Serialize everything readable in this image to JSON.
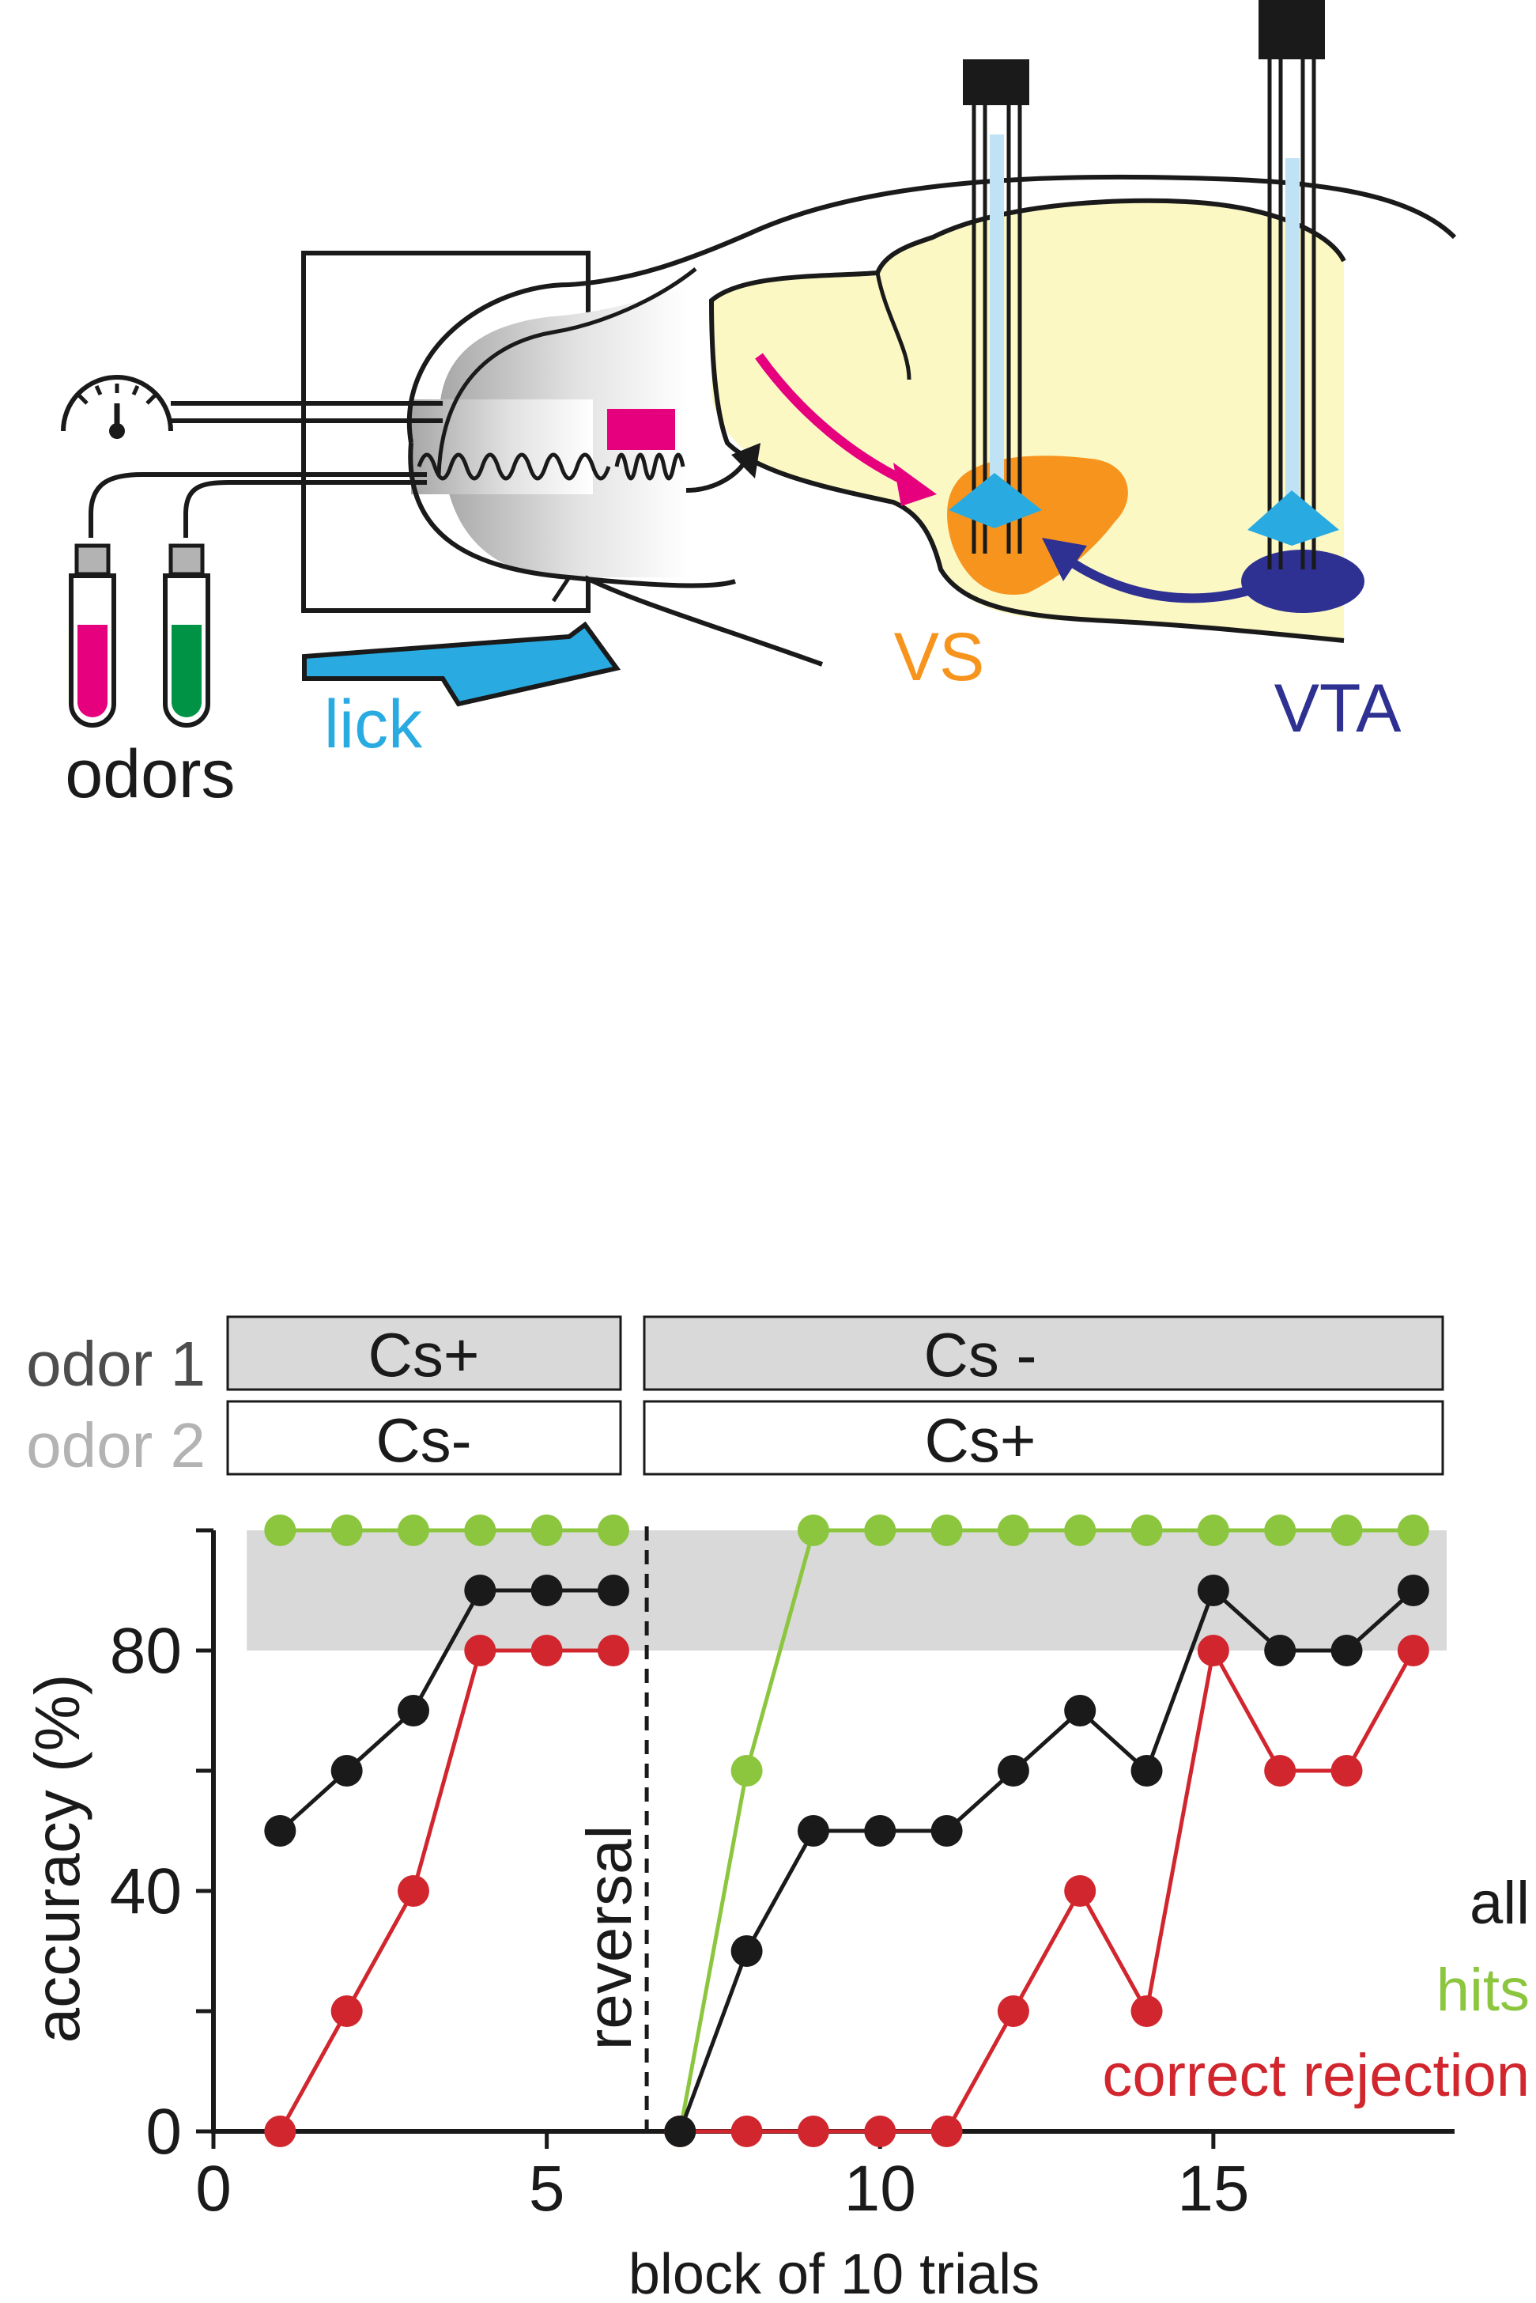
{
  "diagram": {
    "odors_label": "odors",
    "lick_label": "lick",
    "vs_label": "VS",
    "vta_label": "VTA"
  },
  "colors": {
    "all": "#1a1a1a",
    "hits": "#8cc63f",
    "correct_rejection": "#d1262e",
    "vs_orange": "#f7941d",
    "vta_navy": "#2e3092",
    "brain_yellow": "#fbf8c4",
    "cyan": "#29abe2",
    "magenta": "#e6007e",
    "green_odor": "#009245",
    "gray_box": "#d9d9d9",
    "label_gray": "#b3b3b3"
  },
  "conditions": {
    "row1_label": "odor 1",
    "row2_label": "odor 2",
    "row1_pre": "Cs+",
    "row1_post": "Cs -",
    "row2_pre": "Cs-",
    "row2_post": "Cs+"
  },
  "chart_data": {
    "type": "line",
    "xlabel": "block of 10 trials",
    "ylabel": "accuracy (%)",
    "xlim": [
      0,
      18.5
    ],
    "ylim": [
      0,
      100
    ],
    "xticks": [
      0,
      5,
      10,
      15
    ],
    "yticks": [
      0,
      40,
      80
    ],
    "criterion_band": [
      80,
      100
    ],
    "reversal_x": 6.5,
    "reversal_label": "reversal",
    "legend": [
      "all",
      "hits",
      "correct rejection"
    ],
    "legend_position": "right",
    "series": [
      {
        "name": "all",
        "color": "#1a1a1a",
        "segments": [
          {
            "x": [
              1,
              2,
              3,
              4,
              5,
              6
            ],
            "y": [
              50,
              60,
              70,
              90,
              90,
              90
            ]
          },
          {
            "x": [
              7,
              8,
              9,
              10,
              11,
              12,
              13,
              14,
              15,
              16,
              17,
              18
            ],
            "y": [
              0,
              30,
              50,
              50,
              50,
              60,
              70,
              60,
              90,
              80,
              80,
              90
            ]
          }
        ]
      },
      {
        "name": "hits",
        "color": "#8cc63f",
        "segments": [
          {
            "x": [
              1,
              2,
              3,
              4,
              5,
              6
            ],
            "y": [
              100,
              100,
              100,
              100,
              100,
              100
            ]
          },
          {
            "x": [
              7,
              8,
              9,
              10,
              11,
              12,
              13,
              14,
              15,
              16,
              17,
              18
            ],
            "y": [
              0,
              60,
              100,
              100,
              100,
              100,
              100,
              100,
              100,
              100,
              100,
              100
            ]
          }
        ]
      },
      {
        "name": "correct rejection",
        "color": "#d1262e",
        "segments": [
          {
            "x": [
              1,
              2,
              3,
              4,
              5,
              6
            ],
            "y": [
              0,
              20,
              40,
              80,
              80,
              80
            ]
          },
          {
            "x": [
              7,
              8,
              9,
              10,
              11,
              12,
              13,
              14,
              15,
              16,
              17,
              18
            ],
            "y": [
              0,
              0,
              0,
              0,
              0,
              20,
              40,
              20,
              80,
              60,
              60,
              80
            ]
          }
        ]
      }
    ]
  }
}
